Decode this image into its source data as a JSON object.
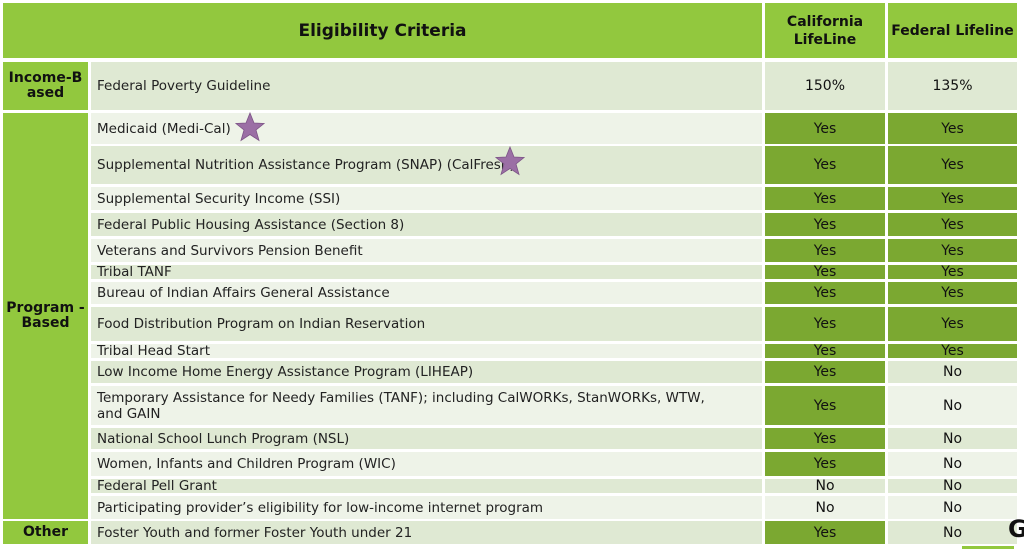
{
  "header": {
    "criteria": "Eligibility Criteria",
    "california": "California LifeLine",
    "federal": "Federal Lifeline"
  },
  "categories": {
    "income": "Income-B ased",
    "program": "Program -Based",
    "other": "Other"
  },
  "rows": [
    {
      "criterion": "Federal Poverty Guideline",
      "california": "150%",
      "federal": "135%"
    },
    {
      "criterion": "Medicaid (Medi-Cal)",
      "california": "Yes",
      "federal": "Yes",
      "star": true
    },
    {
      "criterion": "Supplemental Nutrition Assistance Program (SNAP) (CalFresh)",
      "california": "Yes",
      "federal": "Yes",
      "star": true
    },
    {
      "criterion": "Supplemental Security Income (SSI)",
      "california": "Yes",
      "federal": "Yes"
    },
    {
      "criterion": "Federal Public Housing Assistance (Section 8)",
      "california": "Yes",
      "federal": "Yes"
    },
    {
      "criterion": "Veterans and Survivors Pension Benefit",
      "california": "Yes",
      "federal": "Yes"
    },
    {
      "criterion": "Tribal TANF",
      "california": "Yes",
      "federal": "Yes"
    },
    {
      "criterion": "Bureau of Indian Affairs General Assistance",
      "california": "Yes",
      "federal": "Yes"
    },
    {
      "criterion": "Food Distribution Program on Indian Reservation",
      "california": "Yes",
      "federal": "Yes"
    },
    {
      "criterion": "Tribal Head Start",
      "california": "Yes",
      "federal": "Yes"
    },
    {
      "criterion": "Low Income Home Energy Assistance Program (LIHEAP)",
      "california": "Yes",
      "federal": "No"
    },
    {
      "criterion": "Temporary Assistance for Needy Families (TANF); including CalWORKs, StanWORKs, WTW, and GAIN",
      "california": "Yes",
      "federal": "No"
    },
    {
      "criterion": "National School Lunch Program (NSL)",
      "california": "Yes",
      "federal": "No"
    },
    {
      "criterion": "Women, Infants and Children Program (WIC)",
      "california": "Yes",
      "federal": "No"
    },
    {
      "criterion": "Federal Pell Grant",
      "california": "No",
      "federal": "No"
    },
    {
      "criterion": "Participating provider’s eligibility for low-income internet program",
      "california": "No",
      "federal": "No"
    },
    {
      "criterion": "Foster Youth and former Foster Youth under 21",
      "california": "Yes",
      "federal": "No"
    }
  ],
  "colors": {
    "header_green": "#92c83e",
    "yes_green": "#7ba831",
    "row_light": "#dfe9d3",
    "row_lighter": "#eef3e8",
    "star_purple": "#9b6fa5"
  },
  "icons": {
    "star": "star-icon"
  }
}
